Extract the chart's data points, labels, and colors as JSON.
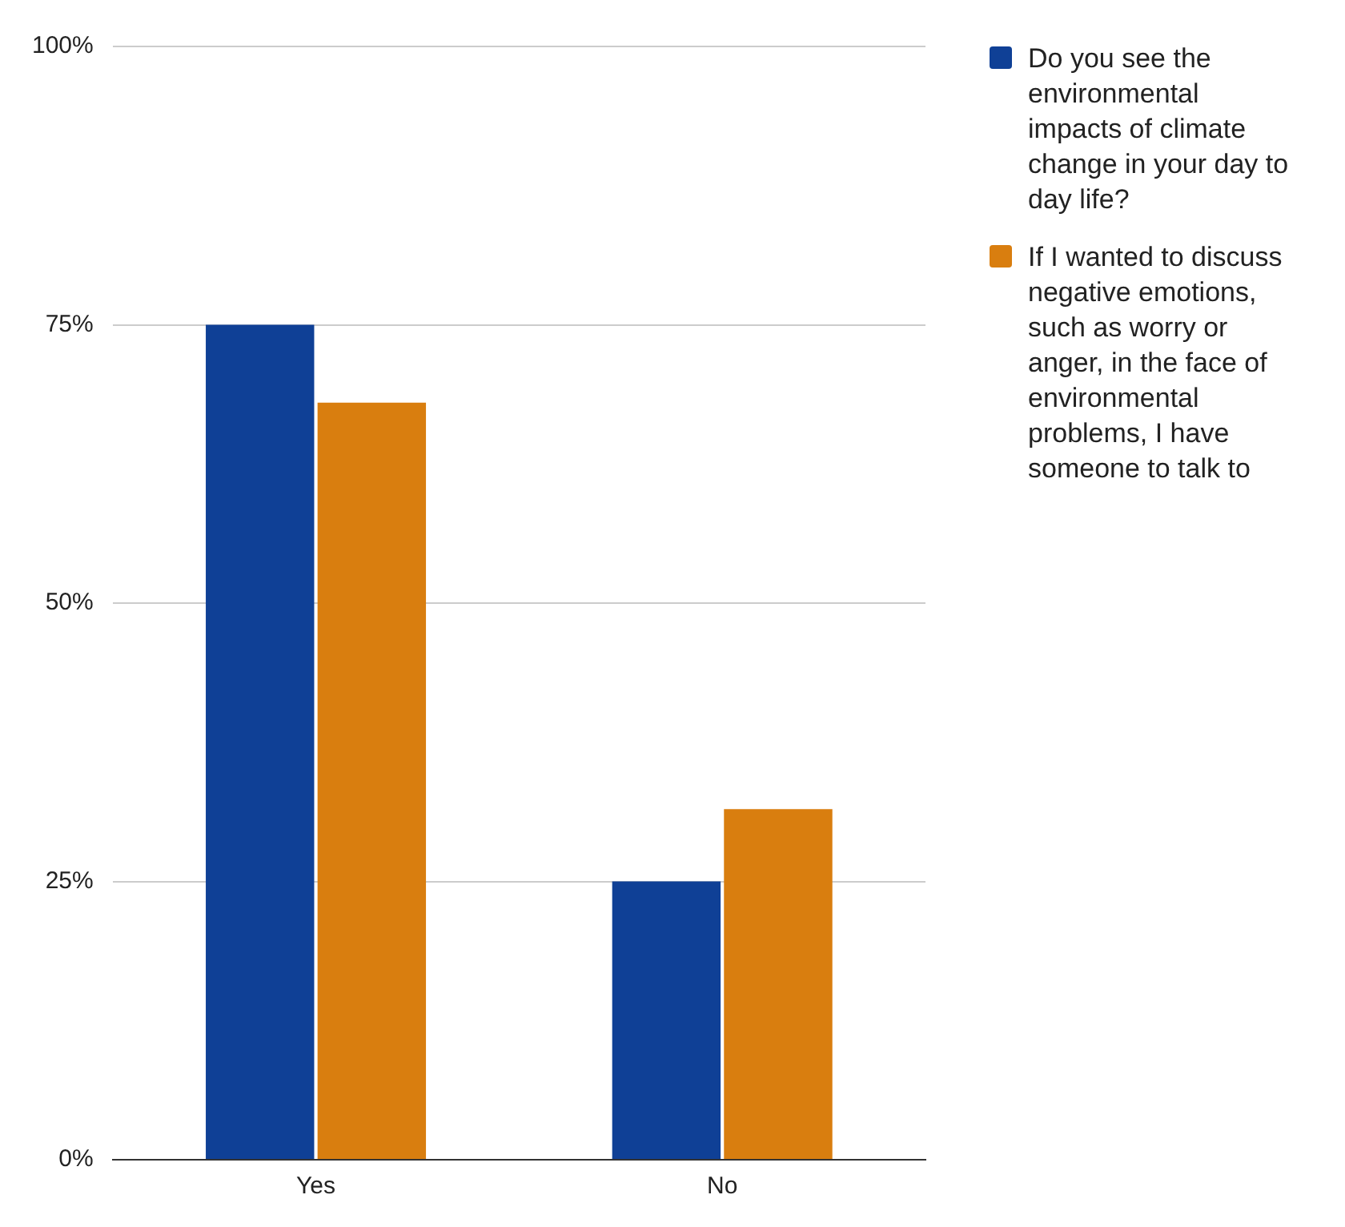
{
  "chart_data": {
    "type": "bar",
    "categories": [
      "Yes",
      "No"
    ],
    "series": [
      {
        "name": "Do you see the environmental impacts of climate change in your day to day life?",
        "color": "#0f4096",
        "values": [
          75,
          25
        ]
      },
      {
        "name": "If I wanted to discuss negative emotions, such as worry or anger, in the face of environmental problems, I have someone to talk to",
        "color": "#d97e0f",
        "values": [
          68,
          31.5
        ]
      }
    ],
    "ylim": [
      0,
      100
    ],
    "yticks": [
      {
        "value": 0,
        "label": "0%"
      },
      {
        "value": 25,
        "label": "25%"
      },
      {
        "value": 50,
        "label": "50%"
      },
      {
        "value": 75,
        "label": "75%"
      },
      {
        "value": 100,
        "label": "100%"
      }
    ],
    "grid": "y",
    "legend": "top right"
  }
}
